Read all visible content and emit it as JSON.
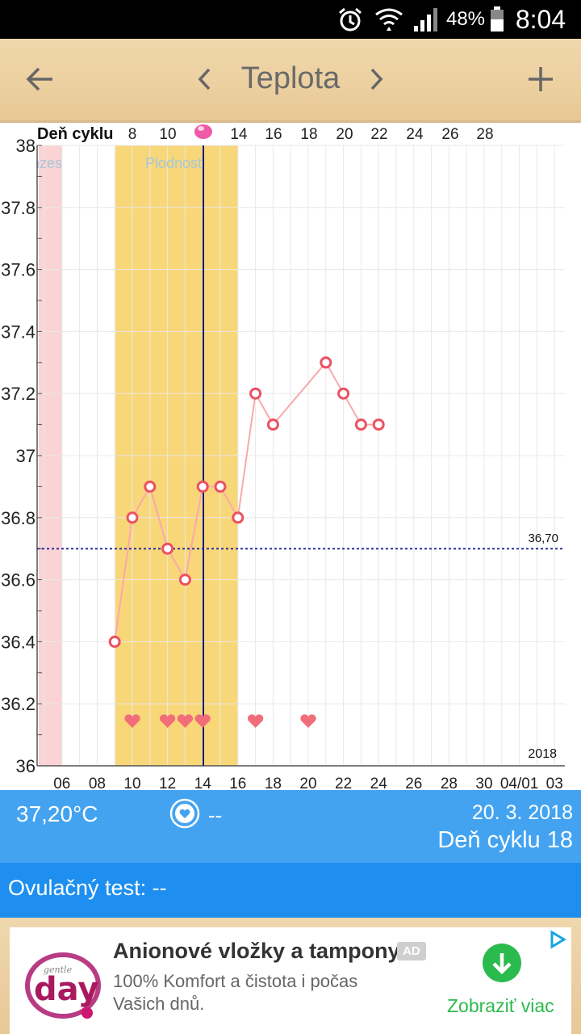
{
  "status_bar": {
    "icons": [
      "alarm-icon",
      "wifi-icon",
      "signal-icon",
      "battery-icon"
    ],
    "battery": "48%",
    "time": "8:04"
  },
  "app_bar": {
    "back_icon": "arrow-back-icon",
    "prev_icon": "chevron-left-icon",
    "title": "Teplota",
    "next_icon": "chevron-right-icon",
    "add_icon": "plus-icon"
  },
  "chart_data": {
    "type": "line",
    "top_axis_label": "Deň cyklu",
    "top_ticks": [
      "8",
      "10",
      "14",
      "16",
      "18",
      "20",
      "22",
      "24",
      "26",
      "28"
    ],
    "x_tick_labels": [
      "06",
      "08",
      "10",
      "12",
      "14",
      "16",
      "18",
      "20",
      "22",
      "24",
      "26",
      "28",
      "30",
      "04/01",
      "03"
    ],
    "y_tick_labels": [
      "38",
      "37.8",
      "37.6",
      "37.4",
      "37.2",
      "37",
      "36.8",
      "36.6",
      "36.4",
      "36.2",
      "36"
    ],
    "ylim": [
      36,
      38
    ],
    "series": [
      {
        "x": [
          "2018-03-09",
          "2018-03-10",
          "2018-03-11",
          "2018-03-12",
          "2018-03-13",
          "2018-03-14",
          "2018-03-15",
          "2018-03-16",
          "2018-03-17",
          "2018-03-18",
          "2018-03-21",
          "2018-03-22",
          "2018-03-23",
          "2018-03-24"
        ],
        "values": [
          36.4,
          36.8,
          36.9,
          36.7,
          36.6,
          36.9,
          36.9,
          36.8,
          37.2,
          37.1,
          37.3,
          37.2,
          37.1,
          37.1
        ]
      }
    ],
    "reference_line": {
      "value": 36.7,
      "label": "36,70"
    },
    "bands": [
      {
        "label": "Menzes",
        "color": "#fbd3d4"
      },
      {
        "label": "Plodnosť",
        "color": "#f8d778"
      }
    ],
    "ovulation_marker": {
      "icon": "pink-dot-icon"
    },
    "heart_dates": [
      "2018-03-10",
      "2018-03-12",
      "2018-03-13",
      "2018-03-14",
      "2018-03-17",
      "2018-03-20"
    ],
    "year_label": "2018",
    "colors": {
      "line": "#f9a9ad",
      "point": "#ec5162",
      "ref": "#2c2ca0",
      "ovu_line": "#1a1a7a",
      "heart": "#f26d7a",
      "pink": "#ef5aa8"
    },
    "grid": true
  },
  "info": {
    "temperature": "37,20°C",
    "heart_icon": "heart-circle-icon",
    "heart_value": "--",
    "date": "20. 3. 2018",
    "cycle_day": "Deň cyklu 18"
  },
  "ovulation_test": {
    "label": "Ovulačný test: --"
  },
  "ad": {
    "logo_text": "day",
    "logo_small": "gentle",
    "headline": "Anionové vložky a tampony",
    "badge": "AD",
    "line1": "100% Komfort a čistota i počas",
    "line2": "Vašich dnů.",
    "cta": "Zobraziť viac",
    "icons": [
      "download-icon",
      "adchoices-icon"
    ],
    "colors": {
      "cta": "#2bba4e",
      "logo": "#a8195f"
    }
  }
}
